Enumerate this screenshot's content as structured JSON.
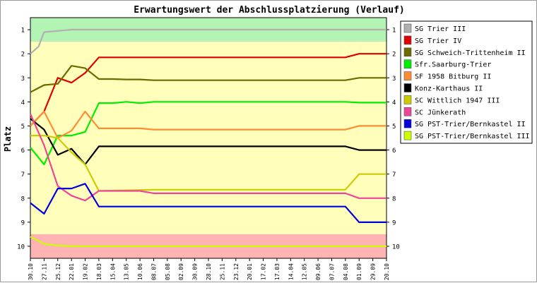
{
  "chart_data": {
    "type": "line",
    "title": "Erwartungswert der Abschlussplatzierung (Verlauf)",
    "ylabel": "Platz",
    "xlabel": "",
    "ylim": [
      10.5,
      0.5
    ],
    "yticks": [
      1,
      2,
      3,
      4,
      5,
      6,
      7,
      8,
      9,
      10
    ],
    "grid": false,
    "legend_position": "right",
    "bands": [
      {
        "from": 0.5,
        "to": 1.5,
        "color": "#b3f3b3"
      },
      {
        "from": 1.5,
        "to": 9.5,
        "color": "#ffffbb"
      },
      {
        "from": 9.5,
        "to": 10.5,
        "color": "#ffb3b3"
      }
    ],
    "x": [
      "30.10",
      "27.11",
      "25.12",
      "22.01",
      "19.02",
      "18.03",
      "15.04",
      "13.05",
      "10.06",
      "08.07",
      "05.08",
      "02.09",
      "30.09",
      "28.10",
      "25.11",
      "23.12",
      "20.01",
      "17.02",
      "17.03",
      "14.04",
      "12.05",
      "09.06",
      "07.07",
      "04.08",
      "01.09",
      "29.09",
      "20.10"
    ],
    "series": [
      {
        "name": "SG Trier III",
        "color": "#b0b0b0",
        "points": [
          [
            0,
            2.0
          ],
          [
            0.6,
            1.7
          ],
          [
            1,
            1.1
          ],
          [
            2,
            1.05
          ],
          [
            3,
            1.0
          ],
          [
            26,
            1.0
          ]
        ]
      },
      {
        "name": "SG Trier IV",
        "color": "#dd0000",
        "points": [
          [
            0,
            5.0
          ],
          [
            1,
            4.4
          ],
          [
            2,
            3.0
          ],
          [
            3,
            3.2
          ],
          [
            4,
            2.8
          ],
          [
            5,
            2.15
          ],
          [
            23,
            2.15
          ],
          [
            24,
            2.0
          ],
          [
            26,
            2.0
          ]
        ]
      },
      {
        "name": "SG Schweich-Trittenheim II",
        "color": "#6b6b00",
        "points": [
          [
            0,
            3.6
          ],
          [
            1,
            3.3
          ],
          [
            2,
            3.25
          ],
          [
            3,
            2.5
          ],
          [
            4,
            2.6
          ],
          [
            5,
            3.05
          ],
          [
            6,
            3.05
          ],
          [
            7,
            3.07
          ],
          [
            8,
            3.07
          ],
          [
            9,
            3.1
          ],
          [
            23,
            3.1
          ],
          [
            24,
            3.0
          ],
          [
            26,
            3.0
          ]
        ]
      },
      {
        "name": "Sfr.Saarburg-Trier",
        "color": "#00ee00",
        "points": [
          [
            0,
            5.9
          ],
          [
            1,
            6.6
          ],
          [
            2,
            5.4
          ],
          [
            3,
            5.4
          ],
          [
            4,
            5.25
          ],
          [
            5,
            4.05
          ],
          [
            6,
            4.05
          ],
          [
            7,
            4.0
          ],
          [
            8,
            4.05
          ],
          [
            9,
            4.0
          ],
          [
            23,
            4.0
          ],
          [
            24,
            4.03
          ],
          [
            26,
            4.03
          ]
        ]
      },
      {
        "name": "SF 1958 Bitburg II",
        "color": "#ff8c35",
        "points": [
          [
            0,
            5.0
          ],
          [
            1,
            4.4
          ],
          [
            2,
            5.5
          ],
          [
            3,
            5.2
          ],
          [
            4,
            4.4
          ],
          [
            5,
            5.1
          ],
          [
            8,
            5.1
          ],
          [
            9,
            5.15
          ],
          [
            23,
            5.15
          ],
          [
            24,
            5.0
          ],
          [
            26,
            5.0
          ]
        ]
      },
      {
        "name": "Konz-Karthaus II",
        "color": "#000000",
        "points": [
          [
            0,
            4.7
          ],
          [
            1,
            5.15
          ],
          [
            2,
            6.2
          ],
          [
            3,
            5.95
          ],
          [
            4,
            6.6
          ],
          [
            5,
            5.85
          ],
          [
            23,
            5.85
          ],
          [
            24,
            6.0
          ],
          [
            26,
            6.0
          ]
        ]
      },
      {
        "name": "SC Wittlich 1947 III",
        "color": "#cccc00",
        "points": [
          [
            0,
            5.4
          ],
          [
            1,
            5.4
          ],
          [
            2,
            5.5
          ],
          [
            3,
            6.1
          ],
          [
            4,
            6.6
          ],
          [
            5,
            7.7
          ],
          [
            9,
            7.65
          ],
          [
            23,
            7.65
          ],
          [
            24,
            7.0
          ],
          [
            26,
            7.0
          ]
        ]
      },
      {
        "name": "SC Jünkerath",
        "color": "#ee4499",
        "points": [
          [
            0,
            4.5
          ],
          [
            1,
            5.8
          ],
          [
            2,
            7.5
          ],
          [
            3,
            7.9
          ],
          [
            4,
            8.1
          ],
          [
            5,
            7.7
          ],
          [
            8,
            7.7
          ],
          [
            9,
            7.8
          ],
          [
            23,
            7.8
          ],
          [
            24,
            8.0
          ],
          [
            26,
            8.0
          ]
        ]
      },
      {
        "name": "SG PST-Trier/Bernkastel II",
        "color": "#0000dd",
        "points": [
          [
            0,
            8.2
          ],
          [
            1,
            8.65
          ],
          [
            2,
            7.6
          ],
          [
            3,
            7.6
          ],
          [
            4,
            7.4
          ],
          [
            5,
            8.35
          ],
          [
            23,
            8.35
          ],
          [
            24,
            9.0
          ],
          [
            26,
            9.0
          ]
        ]
      },
      {
        "name": "SG PST-Trier/Bernkastel III",
        "color": "#ccff00",
        "points": [
          [
            0,
            9.6
          ],
          [
            1,
            9.9
          ],
          [
            2,
            9.97
          ],
          [
            3,
            10.0
          ],
          [
            26,
            10.0
          ]
        ]
      }
    ]
  }
}
